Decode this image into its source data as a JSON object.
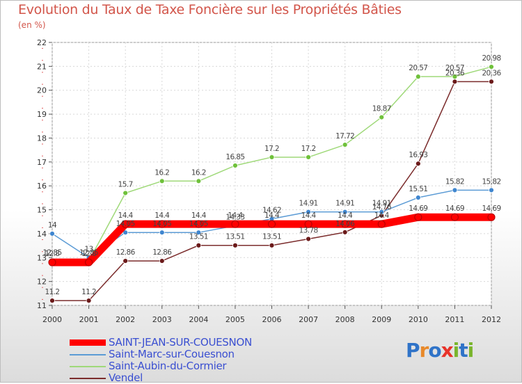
{
  "page": {
    "title": "Evolution du Taux de Taxe Foncière sur les Propriétés Bâties",
    "subtitle": "(en %)"
  },
  "logo": {
    "text": "Proxiti",
    "colors": [
      "#2f73c8",
      "#e8892a",
      "#2f73c8",
      "#e8332a",
      "#7ab52d",
      "#2f73c8",
      "#7ab52d"
    ]
  },
  "chart_data": {
    "type": "line",
    "title": "Evolution du Taux de Taxe Foncière sur les Propriétés Bâties",
    "ylabel": "(en %)",
    "xlabel": "",
    "ylim": [
      11,
      22
    ],
    "yticks": [
      "11",
      "12",
      "13",
      "14",
      "15",
      "16",
      "17",
      "18",
      "19",
      "20",
      "21",
      "22"
    ],
    "x": [
      "2000",
      "2001",
      "2002",
      "2003",
      "2004",
      "2005",
      "2006",
      "2007",
      "2008",
      "2009",
      "2010",
      "2011",
      "2012"
    ],
    "grid": true,
    "legend_position": "bottom-left",
    "series": [
      {
        "name": "SAINT-JEAN-SUR-COUESNON",
        "color": "#ff0000",
        "role": "main",
        "values": [
          12.8,
          12.8,
          14.4,
          14.4,
          14.4,
          14.4,
          14.4,
          14.4,
          14.4,
          14.4,
          14.69,
          14.69,
          14.69
        ],
        "labels": [
          "12.8",
          "12.8",
          "14.4",
          "14.4",
          "14.4",
          "14.4",
          "14.4",
          "14.4",
          "14.4",
          "14.4",
          "14.69",
          "14.69",
          "14.69"
        ]
      },
      {
        "name": "Saint-Marc-sur-Couesnon",
        "color": "#5b9bd5",
        "marker": "#3f86cf",
        "values": [
          14,
          13,
          14.05,
          14.05,
          14.05,
          14.33,
          14.62,
          14.91,
          14.91,
          14.91,
          15.51,
          15.82,
          15.82
        ],
        "labels": [
          "14",
          "13",
          "14.05",
          "14.05",
          "14.05",
          "14.33",
          "14.62",
          "14.91",
          "14.91",
          "14.91",
          "15.51",
          "15.82",
          "15.82"
        ]
      },
      {
        "name": "Saint-Aubin-du-Cormier",
        "color": "#9fd979",
        "marker": "#6fc13b",
        "values": [
          12.85,
          12.85,
          15.7,
          16.2,
          16.2,
          16.85,
          17.2,
          17.2,
          17.72,
          18.87,
          20.57,
          20.57,
          20.98
        ],
        "labels": [
          "12.85",
          "12.85",
          "15.7",
          "16.2",
          "16.2",
          "16.85",
          "17.2",
          "17.2",
          "17.72",
          "18.87",
          "20.57",
          "20.57",
          "20.98"
        ]
      },
      {
        "name": "Vendel",
        "color": "#7b2c2c",
        "marker": "#6b1a1a",
        "values": [
          11.2,
          11.2,
          12.86,
          12.86,
          13.51,
          13.51,
          13.51,
          13.78,
          14.06,
          14.76,
          16.93,
          20.36,
          20.36
        ],
        "labels": [
          "11.2",
          "11.2",
          "12.86",
          "12.86",
          "13.51",
          "13.51",
          "13.51",
          "13.78",
          "14.06",
          "14.76",
          "16.93",
          "20.36",
          "20.36"
        ]
      }
    ]
  }
}
